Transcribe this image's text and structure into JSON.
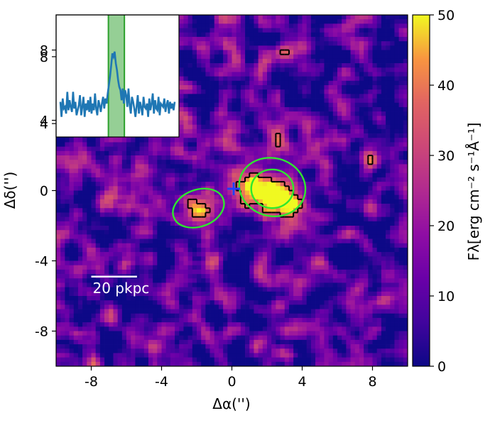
{
  "chart_data": {
    "type": "heatmap",
    "title": "",
    "xlabel": "Δα('')",
    "ylabel": "Δδ('')",
    "xlim": [
      -10,
      10
    ],
    "ylim": [
      -10,
      10
    ],
    "x_ticks": [
      -8,
      -4,
      0,
      4,
      8
    ],
    "x_tick_labels": [
      "-8",
      "-4",
      "0",
      "4",
      "8"
    ],
    "y_ticks": [
      -8,
      -4,
      0,
      4,
      8
    ],
    "y_tick_labels": [
      "-8",
      "-4",
      "0",
      "4",
      "8"
    ],
    "colormap": "plasma",
    "colorbar": {
      "label": "F_λ[erg cm^-2 s^-1 Å^-1]",
      "label_text": "Fλ[erg cm⁻² s⁻¹Å⁻¹]",
      "range": [
        0,
        50
      ],
      "ticks": [
        0,
        10,
        20,
        30,
        40,
        50
      ],
      "tick_labels": [
        "0",
        "10",
        "20",
        "30",
        "40",
        "50"
      ]
    },
    "emission_peaks": [
      {
        "x": -1.8,
        "y": -1.1,
        "value": 44
      },
      {
        "x": 2.0,
        "y": 0.1,
        "value": 46
      },
      {
        "x": 3.1,
        "y": -0.6,
        "value": 40
      },
      {
        "x": 0.4,
        "y": 0.3,
        "value": 34
      }
    ],
    "markers": [
      {
        "type": "cross",
        "x": 0.1,
        "y": 0.1,
        "color": "#1f3fff"
      }
    ],
    "green_contours": [
      {
        "cx": -1.9,
        "cy": -1.0,
        "rx": 1.5,
        "ry": 1.05,
        "angle_deg": -20
      },
      {
        "cx": 2.3,
        "cy": 0.2,
        "rx": 1.9,
        "ry": 1.65,
        "angle_deg": 15
      },
      {
        "cx": 2.3,
        "cy": 0.1,
        "rx": 1.2,
        "ry": 1.1,
        "angle_deg": 0
      }
    ],
    "scalebar": {
      "label": "20 pkpc",
      "x_start": -8.0,
      "x_end": -5.4,
      "y": -4.9
    },
    "inset_spectrum": {
      "type": "line",
      "series_color": "#1f77b4",
      "highlight_color": "#2ca02c",
      "y_ticks": [
        4,
        8
      ],
      "y_tick_labels": [
        "4",
        "8"
      ],
      "ylim": [
        3.2,
        10.5
      ],
      "xlim": [
        0,
        100
      ],
      "highlight_range": [
        42,
        56
      ],
      "values": [
        5.3,
        4.4,
        5.5,
        4.9,
        5.0,
        4.6,
        5.9,
        4.8,
        5.4,
        5.0,
        4.7,
        5.9,
        4.9,
        5.3,
        4.5,
        4.8,
        5.1,
        5.7,
        4.5,
        5.0,
        5.6,
        4.4,
        5.2,
        4.8,
        5.4,
        4.7,
        5.6,
        4.6,
        5.2,
        4.8,
        5.8,
        4.9,
        4.5,
        5.4,
        5.1,
        4.7,
        5.2,
        5.6,
        4.9,
        5.5,
        5.2,
        5.8,
        6.3,
        6.8,
        7.5,
        8.2,
        8.0,
        8.3,
        7.6,
        7.2,
        6.6,
        6.2,
        6.0,
        5.4,
        6.1,
        5.2,
        6.0,
        5.7,
        5.0,
        6.1,
        5.1,
        4.6,
        5.6,
        5.3,
        4.9,
        4.4,
        5.0,
        5.7,
        4.6,
        5.3,
        5.0,
        4.5,
        5.6,
        5.0,
        4.9,
        5.2,
        4.4,
        5.5,
        4.8,
        5.2,
        5.8,
        4.6,
        5.4,
        4.9,
        4.8,
        5.6,
        4.5,
        5.2,
        5.1,
        5.0,
        5.5,
        4.7,
        5.1,
        5.4,
        4.6,
        5.3,
        4.9,
        5.2,
        4.8,
        5.3
      ]
    }
  }
}
